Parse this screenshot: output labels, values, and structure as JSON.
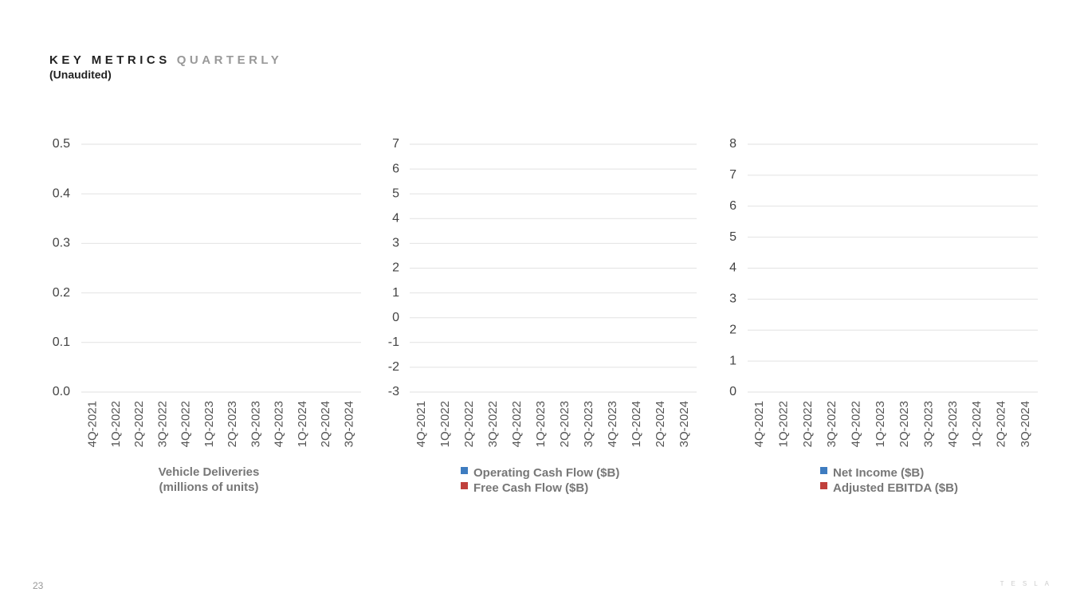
{
  "header": {
    "title": "KEY METRICS",
    "title_accent": "QUARTERLY",
    "subtitle": "(Unaudited)"
  },
  "chart_data": [
    {
      "type": "bar",
      "categories": [
        "4Q-2021",
        "1Q-2022",
        "2Q-2022",
        "3Q-2022",
        "4Q-2022",
        "1Q-2023",
        "2Q-2023",
        "3Q-2023",
        "4Q-2023",
        "1Q-2024",
        "2Q-2024",
        "3Q-2024"
      ],
      "xlabel": [
        "Vehicle Deliveries",
        "(millions of units)"
      ],
      "values": [
        null,
        null,
        null,
        null,
        null,
        null,
        null,
        null,
        null,
        null,
        null,
        null
      ],
      "color": "#3e7cc0",
      "ylim": [
        0,
        0.5
      ],
      "yticks": [
        {
          "value": 0,
          "label": "0.0"
        },
        0.1,
        0.2,
        0.3,
        0.4,
        0.5
      ],
      "grid": true
    },
    {
      "type": "bar",
      "categories": [
        "4Q-2021",
        "1Q-2022",
        "2Q-2022",
        "3Q-2022",
        "4Q-2022",
        "1Q-2023",
        "2Q-2023",
        "3Q-2023",
        "4Q-2023",
        "1Q-2024",
        "2Q-2024",
        "3Q-2024"
      ],
      "series": [
        {
          "name": "Operating Cash Flow ($B)",
          "color": "#3e7cc0",
          "values": [
            null,
            null,
            null,
            null,
            null,
            null,
            null,
            null,
            null,
            null,
            null,
            null
          ]
        },
        {
          "name": "Free Cash Flow ($B)",
          "color": "#c0403c",
          "values": [
            null,
            null,
            null,
            null,
            null,
            null,
            null,
            null,
            null,
            null,
            null,
            null
          ]
        }
      ],
      "ylim": [
        -3,
        7
      ],
      "yticks": [
        -3,
        -2,
        -1,
        0,
        1,
        2,
        3,
        4,
        5,
        6,
        7
      ],
      "grid": true
    },
    {
      "type": "bar",
      "categories": [
        "4Q-2021",
        "1Q-2022",
        "2Q-2022",
        "3Q-2022",
        "4Q-2022",
        "1Q-2023",
        "2Q-2023",
        "3Q-2023",
        "4Q-2023",
        "1Q-2024",
        "2Q-2024",
        "3Q-2024"
      ],
      "series": [
        {
          "name": "Net Income ($B)",
          "color": "#3e7cc0",
          "values": [
            null,
            null,
            null,
            null,
            null,
            null,
            null,
            null,
            null,
            null,
            null,
            null
          ]
        },
        {
          "name": "Adjusted EBITDA ($B)",
          "color": "#c0403c",
          "values": [
            null,
            null,
            null,
            null,
            null,
            null,
            null,
            null,
            null,
            null,
            null,
            null
          ]
        }
      ],
      "ylim": [
        0,
        8
      ],
      "yticks": [
        0,
        1,
        2,
        3,
        4,
        5,
        6,
        7,
        8
      ],
      "grid": true
    }
  ],
  "footer": {
    "page": "23",
    "logo": "TESLA"
  }
}
